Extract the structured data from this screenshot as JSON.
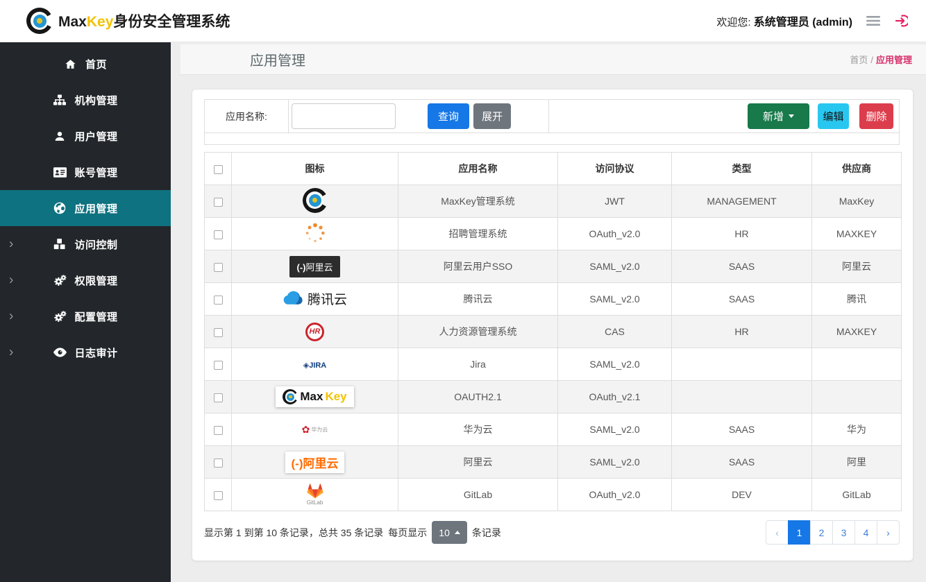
{
  "topbar": {
    "brand": {
      "max": "Max",
      "key": "Key",
      "suffix": "身份安全管理系统"
    },
    "welcome_label": "欢迎您:",
    "welcome_user": "系统管理员 (admin)"
  },
  "sidebar": {
    "items": [
      {
        "key": "home",
        "label": "首页",
        "icon": "home-icon",
        "active": false,
        "expandable": false
      },
      {
        "key": "org",
        "label": "机构管理",
        "icon": "sitemap-icon",
        "active": false,
        "expandable": false
      },
      {
        "key": "user",
        "label": "用户管理",
        "icon": "user-icon",
        "active": false,
        "expandable": false
      },
      {
        "key": "account",
        "label": "账号管理",
        "icon": "id-card-icon",
        "active": false,
        "expandable": false
      },
      {
        "key": "app",
        "label": "应用管理",
        "icon": "globe-icon",
        "active": true,
        "expandable": false
      },
      {
        "key": "access",
        "label": "访问控制",
        "icon": "cubes-icon",
        "active": false,
        "expandable": true
      },
      {
        "key": "permission",
        "label": "权限管理",
        "icon": "gears-icon",
        "active": false,
        "expandable": true
      },
      {
        "key": "config",
        "label": "配置管理",
        "icon": "gears-icon",
        "active": false,
        "expandable": true
      },
      {
        "key": "audit",
        "label": "日志审计",
        "icon": "eye-icon",
        "active": false,
        "expandable": true
      }
    ]
  },
  "page_header": {
    "title": "应用管理",
    "breadcrumb": {
      "home": "首页",
      "separator": "/",
      "current": "应用管理"
    }
  },
  "toolbar": {
    "search_label": "应用名称:",
    "search_value": "",
    "query_button": "查询",
    "expand_button": "展开",
    "add_button": "新增",
    "edit_button": "编辑",
    "delete_button": "删除"
  },
  "table": {
    "columns": [
      "图标",
      "应用名称",
      "访问协议",
      "类型",
      "供应商"
    ],
    "rows": [
      {
        "icon": "maxkey-logo",
        "name": "MaxKey管理系统",
        "protocol": "JWT",
        "type": "MANAGEMENT",
        "vendor": "MaxKey"
      },
      {
        "icon": "spinner-logo",
        "name": "招聘管理系统",
        "protocol": "OAuth_v2.0",
        "type": "HR",
        "vendor": "MAXKEY"
      },
      {
        "icon": "aliyun-dark-logo",
        "name": "阿里云用户SSO",
        "protocol": "SAML_v2.0",
        "type": "SAAS",
        "vendor": "阿里云"
      },
      {
        "icon": "tencent-cloud-logo",
        "name": "腾讯云",
        "protocol": "SAML_v2.0",
        "type": "SAAS",
        "vendor": "腾讯"
      },
      {
        "icon": "hr-logo",
        "name": "人力资源管理系统",
        "protocol": "CAS",
        "type": "HR",
        "vendor": "MAXKEY"
      },
      {
        "icon": "jira-logo",
        "name": "Jira",
        "protocol": "SAML_v2.0",
        "type": "",
        "vendor": ""
      },
      {
        "icon": "maxkey-full-logo",
        "name": "OAUTH2.1",
        "protocol": "OAuth_v2.1",
        "type": "",
        "vendor": ""
      },
      {
        "icon": "huawei-logo",
        "name": "华为云",
        "protocol": "SAML_v2.0",
        "type": "SAAS",
        "vendor": "华为"
      },
      {
        "icon": "aliyun-orange-logo",
        "name": "阿里云",
        "protocol": "SAML_v2.0",
        "type": "SAAS",
        "vendor": "阿里"
      },
      {
        "icon": "gitlab-logo",
        "name": "GitLab",
        "protocol": "OAuth_v2.0",
        "type": "DEV",
        "vendor": "GitLab"
      }
    ]
  },
  "pagination": {
    "summary_text": "显示第 1 到第 10 条记录，总共 35 条记录",
    "per_page_label": "每页显示",
    "page_size": "10",
    "per_page_suffix": "条记录",
    "prev": "‹",
    "pages": [
      "1",
      "2",
      "3",
      "4"
    ],
    "active_page": "1",
    "next": "›"
  },
  "colors": {
    "accent_blue": "#1677e6",
    "accent_green": "#18794b",
    "accent_cyan": "#29c7f0",
    "accent_red": "#dc3d4d",
    "active_menu_teal": "#0f7280",
    "breadcrumb_pink": "#d6336c",
    "logout_pink": "#e91e63",
    "brand_yellow": "#f3c200",
    "sidebar_dark": "#23272b",
    "page_background": "#ededee"
  }
}
